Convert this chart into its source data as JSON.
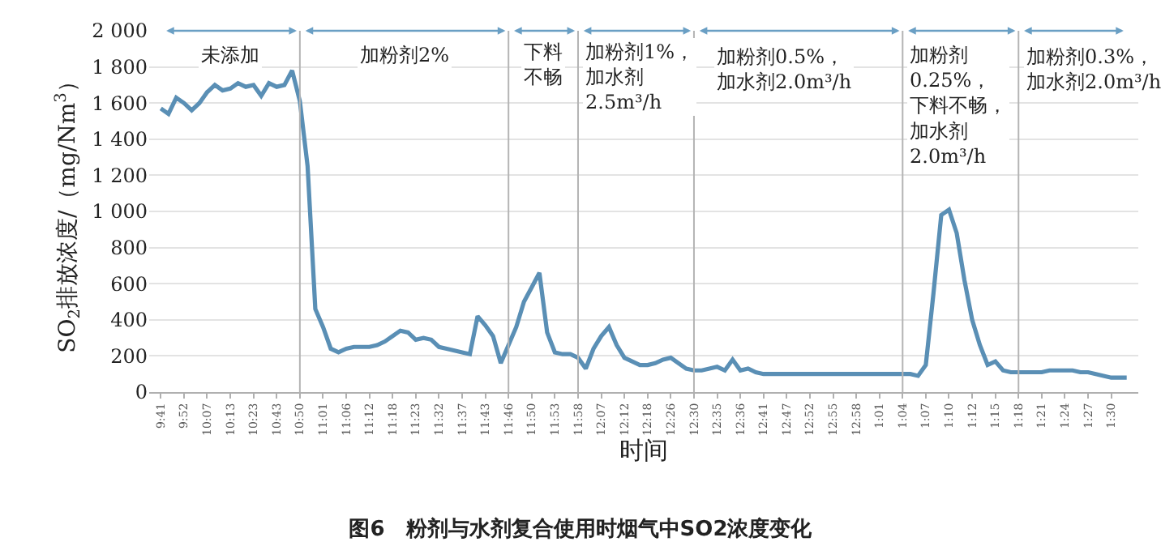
{
  "chart_data": {
    "type": "line",
    "title": "图6　粉剂与水剂复合使用时烟气中SO2浓度变化",
    "xlabel": "时间",
    "ylabel": "SO$_{2}$排放浓度/（mg/Nm$^{3}$）",
    "categories": [
      "9:41",
      null,
      null,
      "9:52",
      null,
      null,
      "10:07",
      null,
      null,
      "10:13",
      null,
      null,
      "10:23",
      null,
      null,
      "10:43",
      null,
      null,
      "10:50",
      null,
      null,
      "11:01",
      null,
      null,
      "11:06",
      null,
      null,
      "11:12",
      null,
      null,
      "11:18",
      null,
      null,
      "11:23",
      null,
      null,
      "11:32",
      null,
      null,
      "11:37",
      null,
      null,
      "11:43",
      null,
      null,
      "11:46",
      null,
      null,
      "11:50",
      null,
      null,
      "11:53",
      null,
      null,
      "11:58",
      null,
      null,
      "12:07",
      null,
      null,
      "12:12",
      null,
      null,
      "12:18",
      null,
      null,
      "12:26",
      null,
      null,
      "12:30",
      null,
      null,
      "12:35",
      null,
      null,
      "12:36",
      null,
      null,
      "12:41",
      null,
      null,
      "12:47",
      null,
      null,
      "12:52",
      null,
      null,
      "12:55",
      null,
      null,
      "12:58",
      null,
      null,
      "1:01",
      null,
      null,
      "1:04",
      null,
      null,
      "1:07",
      null,
      null,
      "1:10",
      null,
      null,
      "1:12",
      null,
      null,
      "1:15",
      null,
      null,
      "1:18",
      null,
      null,
      "1:21",
      null,
      null,
      "1:24",
      null,
      null,
      "1:27",
      null,
      null,
      "1:30",
      null,
      null
    ],
    "ylim": [
      0,
      2000
    ],
    "yticks": [
      0,
      200,
      400,
      600,
      800,
      {
        "value": 1000,
        "label": "1 000"
      },
      {
        "value": 1200,
        "label": "1 200"
      },
      {
        "value": 1400,
        "label": "1 400"
      },
      {
        "value": 1600,
        "label": "1 600"
      },
      {
        "value": 1800,
        "label": "1 800"
      },
      {
        "value": 2000,
        "label": "2 000"
      }
    ],
    "grid": "y",
    "marker": "none",
    "line_style": "solid",
    "series": [
      {
        "color": "#5a8fb5",
        "values": [
          1570,
          1540,
          1630,
          1600,
          1560,
          1600,
          1660,
          1700,
          1670,
          1680,
          1710,
          1690,
          1700,
          1640,
          1710,
          1690,
          1700,
          1780,
          1610,
          1250,
          460,
          360,
          240,
          220,
          240,
          250,
          250,
          250,
          260,
          280,
          310,
          340,
          330,
          290,
          300,
          290,
          250,
          240,
          230,
          220,
          210,
          420,
          370,
          310,
          160,
          260,
          360,
          500,
          580,
          660,
          330,
          220,
          210,
          210,
          190,
          130,
          240,
          310,
          360,
          260,
          190,
          170,
          150,
          150,
          160,
          180,
          190,
          160,
          130,
          120,
          120,
          130,
          140,
          120,
          180,
          120,
          130,
          110,
          100,
          100,
          100,
          100,
          100,
          100,
          100,
          100,
          100,
          100,
          100,
          100,
          100,
          100,
          100,
          100,
          100,
          100,
          100,
          100,
          90,
          150,
          550,
          980,
          1010,
          880,
          620,
          400,
          260,
          150,
          170,
          120,
          110,
          110,
          110,
          110,
          110,
          120,
          120,
          120,
          120,
          110,
          110,
          100,
          90,
          80,
          80,
          80
        ]
      }
    ],
    "annotations": [
      "未添加",
      "加粉剂2%",
      "下料不畅",
      "加粉剂1%，加水剂2.5m³/h",
      "加粉剂0.5%，加水剂2.0m³/h",
      "加粉剂0.25%，下料不畅，加水剂2.0m³/h",
      "加粉剂0.3%，加水剂2.0m³/h"
    ]
  }
}
